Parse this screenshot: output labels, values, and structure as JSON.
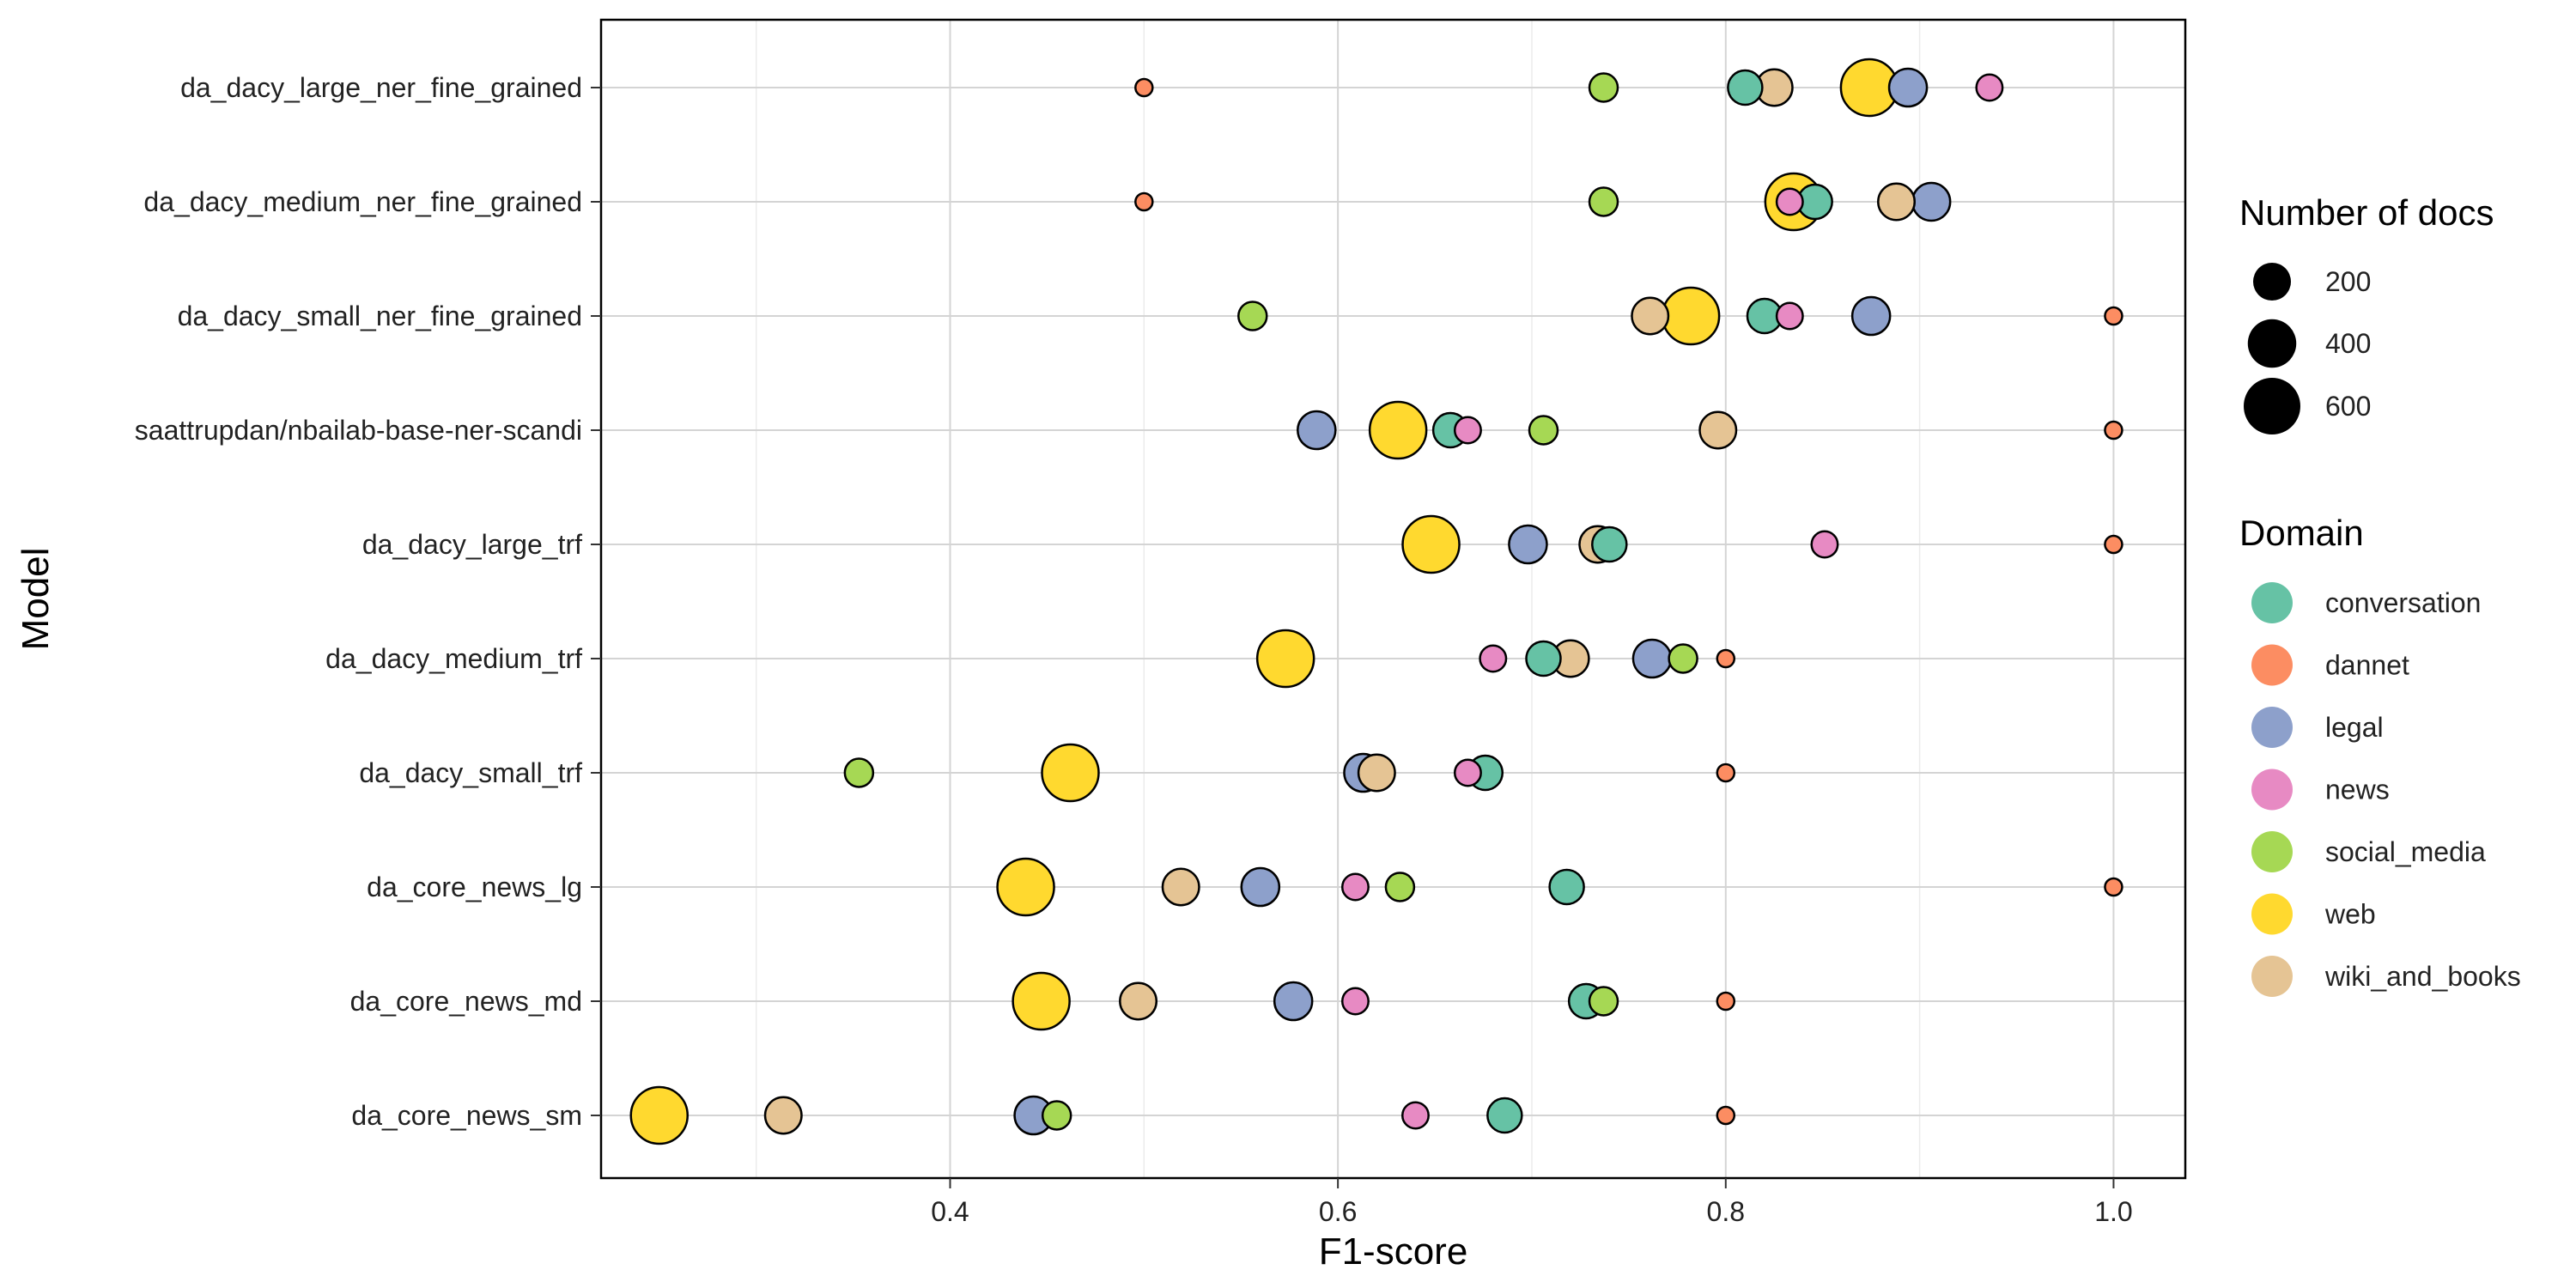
{
  "chart_data": {
    "type": "scatter",
    "title": "",
    "xlabel": "F1-score",
    "ylabel": "Model",
    "xlim": [
      0.22,
      1.037
    ],
    "x_ticks": [
      0.4,
      0.6,
      0.8,
      1.0
    ],
    "x_tick_labels": [
      "0.4",
      "0.6",
      "0.8",
      "1.0"
    ],
    "grid": true,
    "models": [
      "da_dacy_large_ner_fine_grained",
      "da_dacy_medium_ner_fine_grained",
      "da_dacy_small_ner_fine_grained",
      "saattrupdan/nbailab-base-ner-scandi",
      "da_dacy_large_trf",
      "da_dacy_medium_trf",
      "da_dacy_small_trf",
      "da_core_news_lg",
      "da_core_news_md",
      "da_core_news_sm"
    ],
    "domain_colors": {
      "conversation": "#66c2a5",
      "dannet": "#fc8d62",
      "legal": "#8da0cb",
      "news": "#e78ac3",
      "social_media": "#a6d854",
      "web": "#ffd92f",
      "wiki_and_books": "#e5c494"
    },
    "domain_docs": {
      "conversation": 150,
      "dannet": 8,
      "legal": 200,
      "news": 60,
      "social_media": 80,
      "web": 600,
      "wiki_and_books": 180
    },
    "size_legend": {
      "title": "Number of docs",
      "values": [
        200,
        400,
        600
      ],
      "labels": [
        "200",
        "400",
        "600"
      ]
    },
    "domain_legend": {
      "title": "Domain",
      "entries": [
        "conversation",
        "dannet",
        "legal",
        "news",
        "social_media",
        "web",
        "wiki_and_books"
      ]
    },
    "points": [
      {
        "model": "da_dacy_large_ner_fine_grained",
        "domain": "dannet",
        "f1": 0.5
      },
      {
        "model": "da_dacy_large_ner_fine_grained",
        "domain": "social_media",
        "f1": 0.737
      },
      {
        "model": "da_dacy_large_ner_fine_grained",
        "domain": "conversation",
        "f1": 0.81
      },
      {
        "model": "da_dacy_large_ner_fine_grained",
        "domain": "wiki_and_books",
        "f1": 0.825
      },
      {
        "model": "da_dacy_large_ner_fine_grained",
        "domain": "web",
        "f1": 0.874
      },
      {
        "model": "da_dacy_large_ner_fine_grained",
        "domain": "legal",
        "f1": 0.894
      },
      {
        "model": "da_dacy_large_ner_fine_grained",
        "domain": "news",
        "f1": 0.936
      },
      {
        "model": "da_dacy_medium_ner_fine_grained",
        "domain": "dannet",
        "f1": 0.5
      },
      {
        "model": "da_dacy_medium_ner_fine_grained",
        "domain": "social_media",
        "f1": 0.737
      },
      {
        "model": "da_dacy_medium_ner_fine_grained",
        "domain": "conversation",
        "f1": 0.846
      },
      {
        "model": "da_dacy_medium_ner_fine_grained",
        "domain": "web",
        "f1": 0.835
      },
      {
        "model": "da_dacy_medium_ner_fine_grained",
        "domain": "news",
        "f1": 0.833
      },
      {
        "model": "da_dacy_medium_ner_fine_grained",
        "domain": "wiki_and_books",
        "f1": 0.888
      },
      {
        "model": "da_dacy_medium_ner_fine_grained",
        "domain": "legal",
        "f1": 0.906
      },
      {
        "model": "da_dacy_small_ner_fine_grained",
        "domain": "social_media",
        "f1": 0.556
      },
      {
        "model": "da_dacy_small_ner_fine_grained",
        "domain": "wiki_and_books",
        "f1": 0.761
      },
      {
        "model": "da_dacy_small_ner_fine_grained",
        "domain": "web",
        "f1": 0.782
      },
      {
        "model": "da_dacy_small_ner_fine_grained",
        "domain": "conversation",
        "f1": 0.82
      },
      {
        "model": "da_dacy_small_ner_fine_grained",
        "domain": "news",
        "f1": 0.833
      },
      {
        "model": "da_dacy_small_ner_fine_grained",
        "domain": "legal",
        "f1": 0.875
      },
      {
        "model": "da_dacy_small_ner_fine_grained",
        "domain": "dannet",
        "f1": 1.0
      },
      {
        "model": "saattrupdan/nbailab-base-ner-scandi",
        "domain": "legal",
        "f1": 0.589
      },
      {
        "model": "saattrupdan/nbailab-base-ner-scandi",
        "domain": "web",
        "f1": 0.631
      },
      {
        "model": "saattrupdan/nbailab-base-ner-scandi",
        "domain": "conversation",
        "f1": 0.658
      },
      {
        "model": "saattrupdan/nbailab-base-ner-scandi",
        "domain": "news",
        "f1": 0.667
      },
      {
        "model": "saattrupdan/nbailab-base-ner-scandi",
        "domain": "social_media",
        "f1": 0.706
      },
      {
        "model": "saattrupdan/nbailab-base-ner-scandi",
        "domain": "wiki_and_books",
        "f1": 0.796
      },
      {
        "model": "saattrupdan/nbailab-base-ner-scandi",
        "domain": "dannet",
        "f1": 1.0
      },
      {
        "model": "da_dacy_large_trf",
        "domain": "web",
        "f1": 0.648
      },
      {
        "model": "da_dacy_large_trf",
        "domain": "legal",
        "f1": 0.698
      },
      {
        "model": "da_dacy_large_trf",
        "domain": "conversation",
        "f1": 0.74
      },
      {
        "model": "da_dacy_large_trf",
        "domain": "wiki_and_books",
        "f1": 0.734
      },
      {
        "model": "da_dacy_large_trf",
        "domain": "news",
        "f1": 0.851
      },
      {
        "model": "da_dacy_large_trf",
        "domain": "dannet",
        "f1": 1.0
      },
      {
        "model": "da_dacy_medium_trf",
        "domain": "web",
        "f1": 0.573
      },
      {
        "model": "da_dacy_medium_trf",
        "domain": "news",
        "f1": 0.68
      },
      {
        "model": "da_dacy_medium_trf",
        "domain": "conversation",
        "f1": 0.706
      },
      {
        "model": "da_dacy_medium_trf",
        "domain": "wiki_and_books",
        "f1": 0.72
      },
      {
        "model": "da_dacy_medium_trf",
        "domain": "legal",
        "f1": 0.762
      },
      {
        "model": "da_dacy_medium_trf",
        "domain": "social_media",
        "f1": 0.778
      },
      {
        "model": "da_dacy_medium_trf",
        "domain": "dannet",
        "f1": 0.8
      },
      {
        "model": "da_dacy_small_trf",
        "domain": "social_media",
        "f1": 0.353
      },
      {
        "model": "da_dacy_small_trf",
        "domain": "web",
        "f1": 0.462
      },
      {
        "model": "da_dacy_small_trf",
        "domain": "legal",
        "f1": 0.613
      },
      {
        "model": "da_dacy_small_trf",
        "domain": "wiki_and_books",
        "f1": 0.62
      },
      {
        "model": "da_dacy_small_trf",
        "domain": "news",
        "f1": 0.667
      },
      {
        "model": "da_dacy_small_trf",
        "domain": "conversation",
        "f1": 0.676
      },
      {
        "model": "da_dacy_small_trf",
        "domain": "dannet",
        "f1": 0.8
      },
      {
        "model": "da_core_news_lg",
        "domain": "web",
        "f1": 0.439
      },
      {
        "model": "da_core_news_lg",
        "domain": "wiki_and_books",
        "f1": 0.519
      },
      {
        "model": "da_core_news_lg",
        "domain": "legal",
        "f1": 0.56
      },
      {
        "model": "da_core_news_lg",
        "domain": "news",
        "f1": 0.609
      },
      {
        "model": "da_core_news_lg",
        "domain": "social_media",
        "f1": 0.632
      },
      {
        "model": "da_core_news_lg",
        "domain": "conversation",
        "f1": 0.718
      },
      {
        "model": "da_core_news_lg",
        "domain": "dannet",
        "f1": 1.0
      },
      {
        "model": "da_core_news_md",
        "domain": "web",
        "f1": 0.447
      },
      {
        "model": "da_core_news_md",
        "domain": "wiki_and_books",
        "f1": 0.497
      },
      {
        "model": "da_core_news_md",
        "domain": "legal",
        "f1": 0.577
      },
      {
        "model": "da_core_news_md",
        "domain": "news",
        "f1": 0.609
      },
      {
        "model": "da_core_news_md",
        "domain": "conversation",
        "f1": 0.728
      },
      {
        "model": "da_core_news_md",
        "domain": "social_media",
        "f1": 0.737
      },
      {
        "model": "da_core_news_md",
        "domain": "dannet",
        "f1": 0.8
      },
      {
        "model": "da_core_news_sm",
        "domain": "web",
        "f1": 0.25
      },
      {
        "model": "da_core_news_sm",
        "domain": "wiki_and_books",
        "f1": 0.314
      },
      {
        "model": "da_core_news_sm",
        "domain": "legal",
        "f1": 0.443
      },
      {
        "model": "da_core_news_sm",
        "domain": "social_media",
        "f1": 0.455
      },
      {
        "model": "da_core_news_sm",
        "domain": "news",
        "f1": 0.64
      },
      {
        "model": "da_core_news_sm",
        "domain": "conversation",
        "f1": 0.686
      },
      {
        "model": "da_core_news_sm",
        "domain": "dannet",
        "f1": 0.8
      }
    ]
  }
}
